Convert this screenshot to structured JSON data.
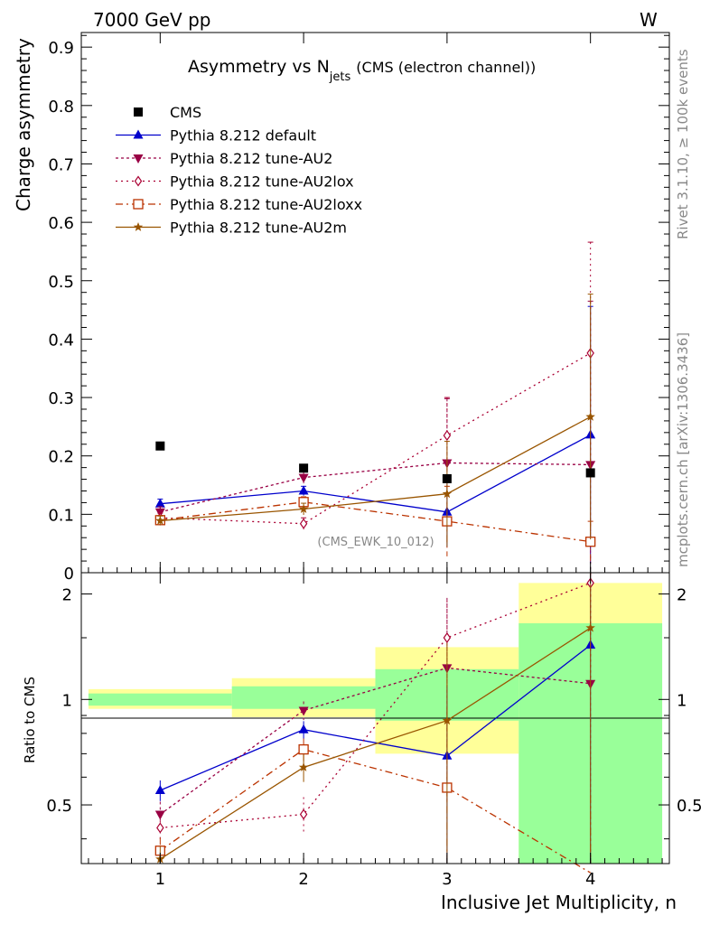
{
  "header": {
    "energy_label": "7000 GeV pp",
    "process_label": "W",
    "side_rivet": "Rivet 3.1.10, ≥ 100k events",
    "side_mcplots": "mcplots.cern.ch [arXiv:1306.3436]"
  },
  "chart_data": {
    "type": "line",
    "title_main": "Asymmetry vs N",
    "title_sub": "jets",
    "title_suffix": "(CMS (electron channel))",
    "ylabel": "Charge asymmetry",
    "ratio_ylabel": "Ratio to CMS",
    "xlabel": "Inclusive Jet Multiplicity, n",
    "analysis_label": "(CMS_EWK_10_012)",
    "x": [
      1,
      2,
      3,
      4
    ],
    "xlim": [
      0.45,
      4.55
    ],
    "ylim": [
      0,
      0.925
    ],
    "ratio_ylim": [
      0.34,
      2.3
    ],
    "x_ticks": [
      "1",
      "2",
      "3",
      "4"
    ],
    "y_ticks": [
      "0",
      "0.1",
      "0.2",
      "0.3",
      "0.4",
      "0.5",
      "0.6",
      "0.7",
      "0.8",
      "0.9"
    ],
    "ratio_ticks": [
      "0.5",
      "1",
      "2"
    ],
    "data": {
      "name": "CMS",
      "values": [
        0.217,
        0.179,
        0.161,
        0.171
      ],
      "bin_edges": [
        0.5,
        1.5,
        2.5,
        3.5,
        4.5
      ],
      "ratio_band_stat": [
        [
          0.96,
          1.04
        ],
        [
          0.94,
          1.09
        ],
        [
          0.87,
          1.22
        ],
        [
          0.34,
          1.65
        ]
      ],
      "ratio_band_total": [
        [
          0.94,
          1.07
        ],
        [
          0.89,
          1.15
        ],
        [
          0.7,
          1.41
        ],
        [
          0.34,
          2.15
        ]
      ]
    },
    "series": [
      {
        "name": "Pythia 8.212 default",
        "color": "#0000cc",
        "marker": "triangle-up",
        "dash": "",
        "values": [
          0.118,
          0.14,
          0.104,
          0.236
        ],
        "errors": [
          0.008,
          0.008,
          0.06,
          0.22
        ],
        "ratio": [
          0.55,
          0.82,
          0.69,
          1.43
        ]
      },
      {
        "name": "Pythia 8.212 tune-AU2",
        "color": "#990044",
        "marker": "triangle-down",
        "dash": "3,3",
        "values": [
          0.104,
          0.163,
          0.188,
          0.185
        ],
        "errors": [
          0.009,
          0.01,
          0.11,
          0.28
        ],
        "ratio": [
          0.47,
          0.93,
          1.23,
          1.11
        ]
      },
      {
        "name": "Pythia 8.212 tune-AU2lox",
        "color": "#aa0033",
        "marker": "diamond",
        "dash": "2,4",
        "values": [
          0.094,
          0.084,
          0.235,
          0.376
        ],
        "errors": [
          0.008,
          0.01,
          0.065,
          0.19
        ],
        "ratio": [
          0.43,
          0.47,
          1.5,
          2.15
        ]
      },
      {
        "name": "Pythia 8.212 tune-AU2loxx",
        "color": "#bb3300",
        "marker": "square-open",
        "dash": "8,4,2,4",
        "values": [
          0.09,
          0.121,
          0.088,
          0.053
        ],
        "errors": [
          0.008,
          0.009,
          0.06,
          0.035
        ],
        "ratio": [
          0.37,
          0.72,
          0.56,
          0.32
        ]
      },
      {
        "name": "Pythia 8.212 tune-AU2m",
        "color": "#995500",
        "marker": "star",
        "dash": "",
        "values": [
          0.089,
          0.109,
          0.135,
          0.267
        ],
        "errors": [
          0.008,
          0.01,
          0.09,
          0.21
        ],
        "ratio": [
          0.35,
          0.64,
          0.87,
          1.6
        ]
      }
    ]
  }
}
